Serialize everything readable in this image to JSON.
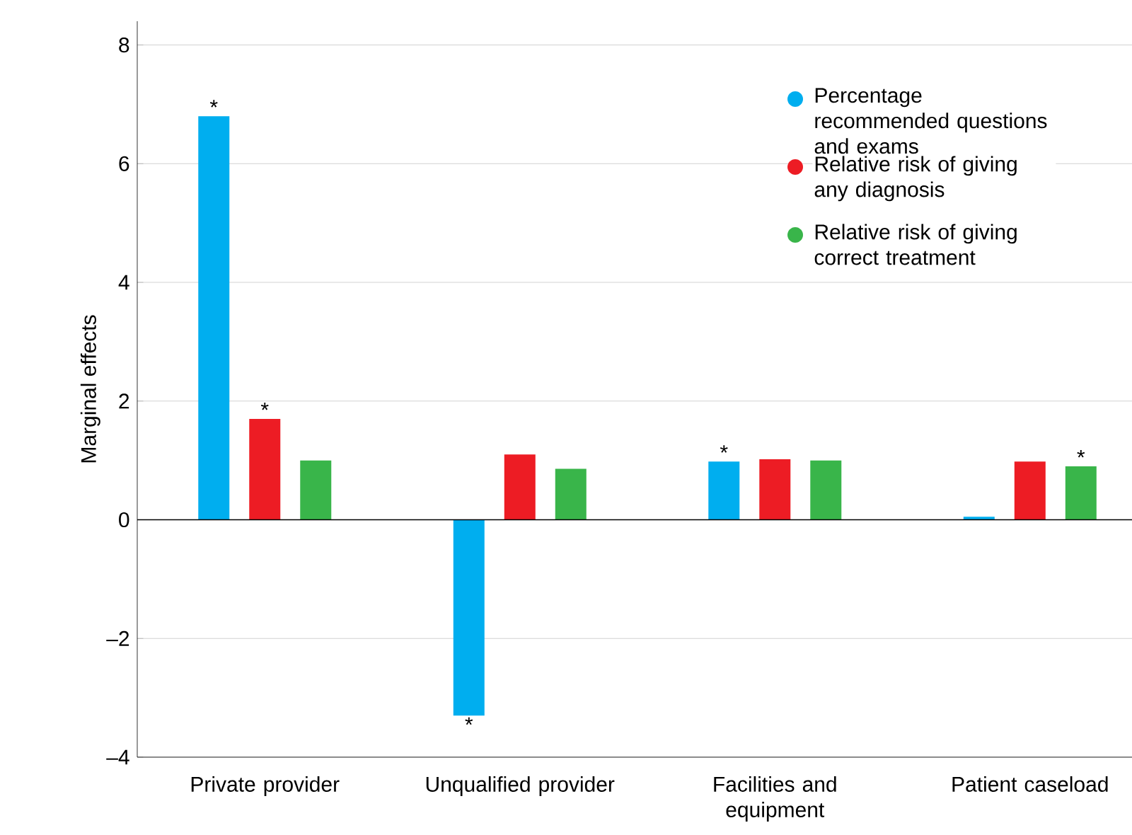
{
  "chart_data": {
    "type": "bar",
    "ylabel": "Marginal effects",
    "categories": [
      "Private provider",
      "Unqualified provider",
      "Facilities and equipment",
      "Patient caseload"
    ],
    "series": [
      {
        "name": "Percentage recommended questions and exams",
        "color": "#00aeef",
        "values": [
          6.8,
          -3.3,
          0.98,
          0.05
        ],
        "value_labels": [
          "*",
          "*",
          "*",
          null
        ]
      },
      {
        "name": "Relative risk of giving any diagnosis",
        "color": "#ed1c24",
        "values": [
          1.7,
          1.1,
          1.02,
          0.98
        ],
        "value_labels": [
          "*",
          null,
          null,
          null
        ]
      },
      {
        "name": "Relative risk of giving correct treatment",
        "color": "#39b54a",
        "values": [
          1.0,
          0.86,
          1.0,
          0.9
        ],
        "value_labels": [
          null,
          null,
          null,
          "*"
        ]
      }
    ],
    "ylim": [
      -4,
      8.4
    ],
    "yticks": [
      {
        "value": -4,
        "label": "–4"
      },
      {
        "value": -2,
        "label": "–2"
      },
      0,
      2,
      4,
      6,
      8
    ],
    "grid": "y",
    "legend": "top right"
  }
}
